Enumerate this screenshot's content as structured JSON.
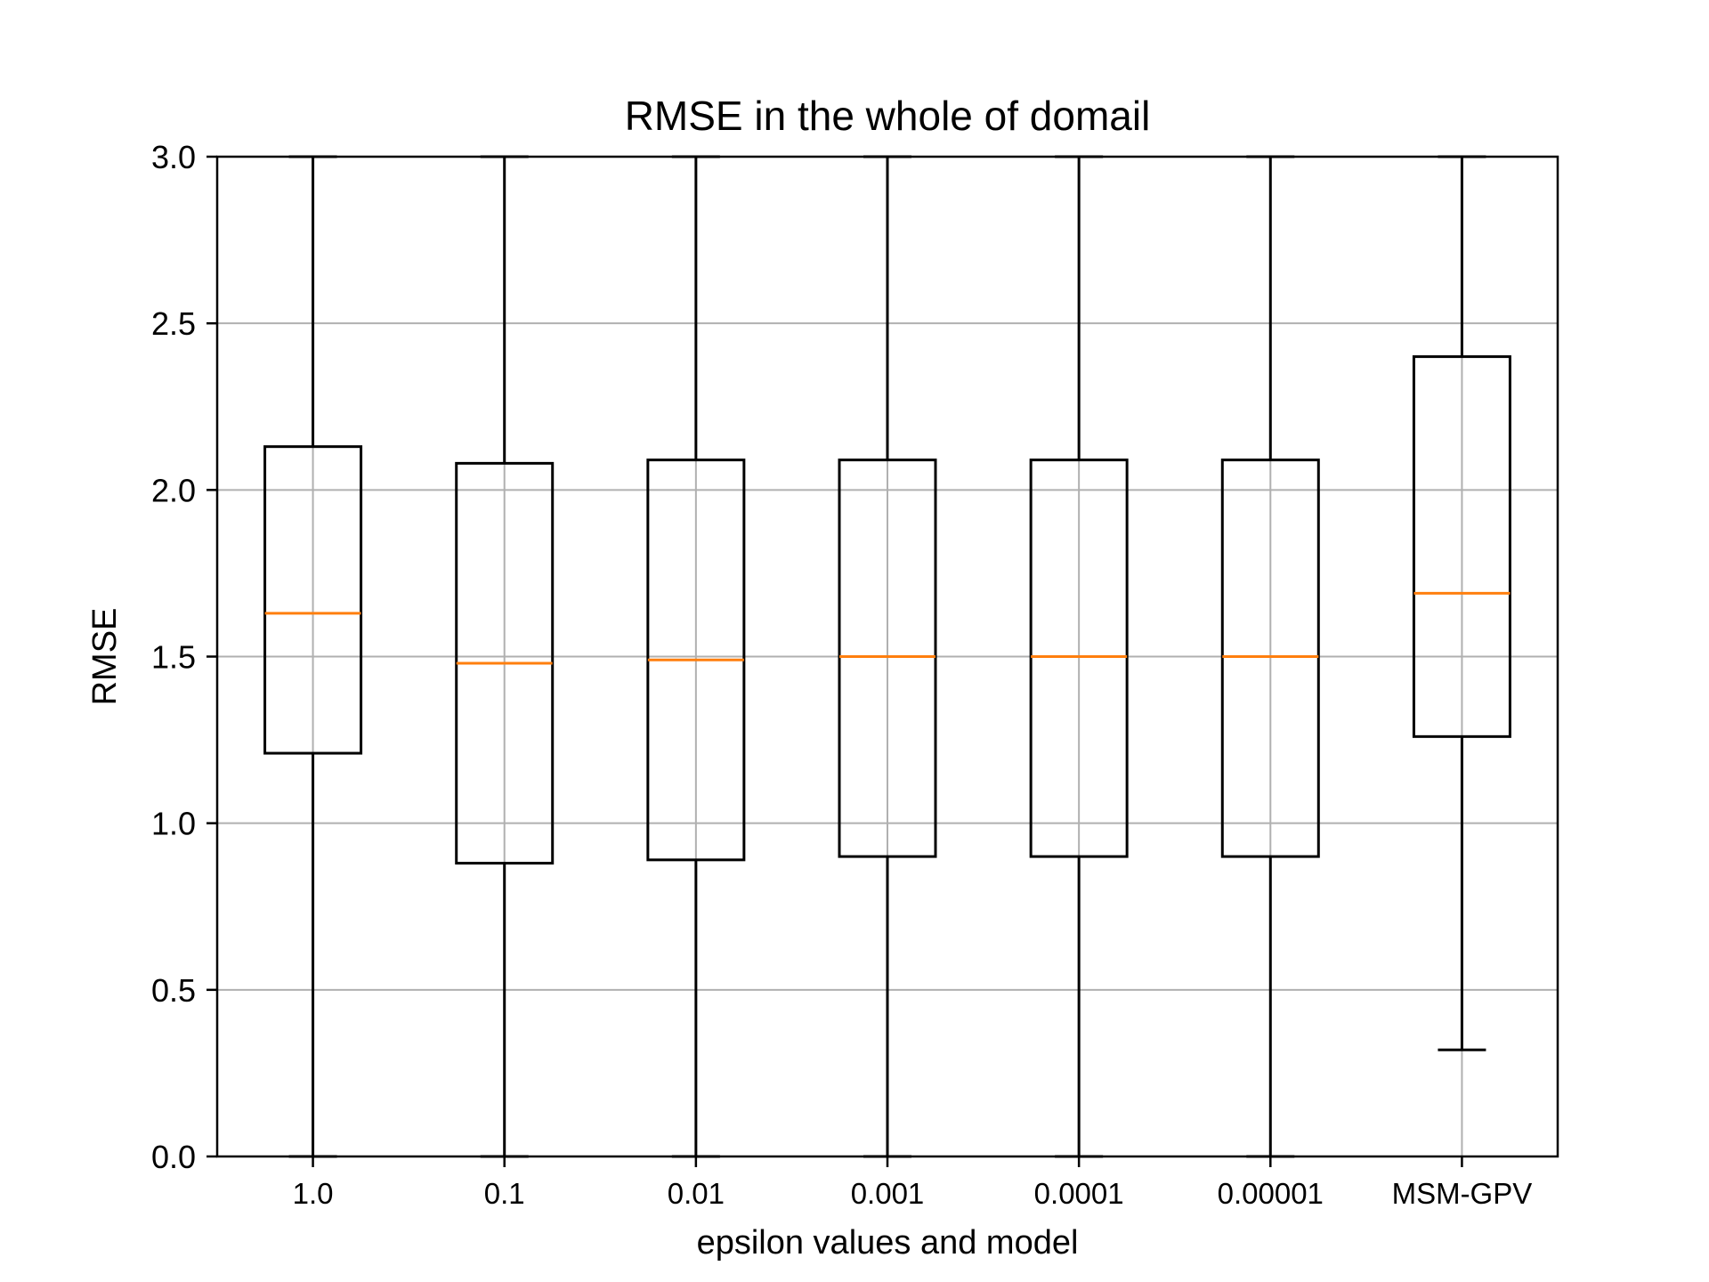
{
  "chart_data": {
    "type": "boxplot",
    "title": "RMSE in the whole of domail",
    "xlabel": "epsilon values and model",
    "ylabel": "RMSE",
    "ylim": [
      0,
      3.0
    ],
    "yticks": [
      "0.0",
      "0.5",
      "1.0",
      "1.5",
      "2.0",
      "2.5",
      "3.0"
    ],
    "grid": true,
    "categories": [
      "1.0",
      "0.1",
      "0.01",
      "0.001",
      "0.0001",
      "0.00001",
      "MSM-GPV"
    ],
    "boxes": [
      {
        "whisker_low": 0.0,
        "q1": 1.21,
        "median": 1.63,
        "q3": 2.13,
        "whisker_high": 3.0
      },
      {
        "whisker_low": 0.0,
        "q1": 0.88,
        "median": 1.48,
        "q3": 2.08,
        "whisker_high": 3.0
      },
      {
        "whisker_low": 0.0,
        "q1": 0.89,
        "median": 1.49,
        "q3": 2.09,
        "whisker_high": 3.0
      },
      {
        "whisker_low": 0.0,
        "q1": 0.9,
        "median": 1.5,
        "q3": 2.09,
        "whisker_high": 3.0
      },
      {
        "whisker_low": 0.0,
        "q1": 0.9,
        "median": 1.5,
        "q3": 2.09,
        "whisker_high": 3.0
      },
      {
        "whisker_low": 0.0,
        "q1": 0.9,
        "median": 1.5,
        "q3": 2.09,
        "whisker_high": 3.0
      },
      {
        "whisker_low": 0.32,
        "q1": 1.26,
        "median": 1.69,
        "q3": 2.4,
        "whisker_high": 3.0
      }
    ],
    "colors": {
      "box": "#000000",
      "median": "#ff7f0e",
      "grid": "#b0b0b0"
    }
  }
}
